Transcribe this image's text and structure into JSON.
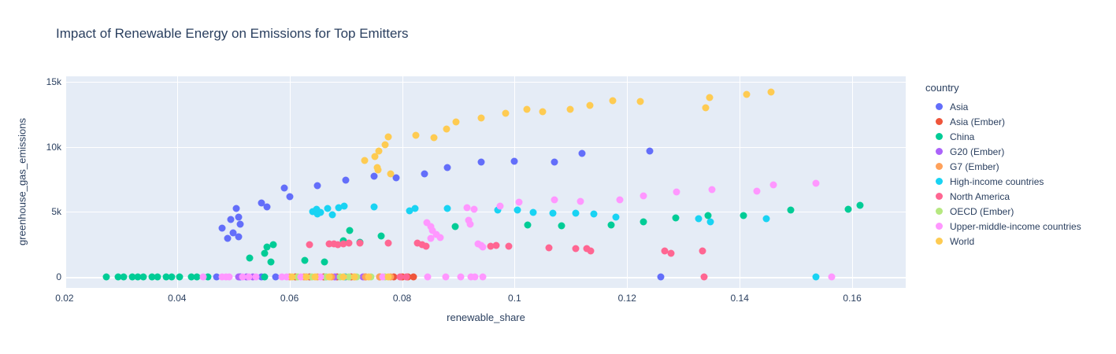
{
  "chart_data": {
    "type": "scatter",
    "title": "Impact of Renewable Energy on Emissions for Top Emitters",
    "xlabel": "renewable_share",
    "ylabel": "greenhouse_gas_emissions",
    "legend_title": "country",
    "legend_position": "right",
    "grid": true,
    "plot_bg": "#e5ecf6",
    "text_color": "#2a3f5f",
    "xlim": [
      0.0203,
      0.1695
    ],
    "ylim": [
      -850,
      15420
    ],
    "x_ticks": {
      "values": [
        0.02,
        0.04,
        0.06,
        0.08,
        0.1,
        0.12,
        0.14,
        0.16
      ],
      "labels": [
        "0.02",
        "0.04",
        "0.06",
        "0.08",
        "0.1",
        "0.12",
        "0.14",
        "0.16"
      ]
    },
    "y_ticks": {
      "values": [
        0,
        5000,
        10000,
        15000
      ],
      "labels": [
        "0",
        "5k",
        "10k",
        "15k"
      ]
    },
    "series": [
      {
        "name": "Asia",
        "color": "#636efa",
        "points": [
          [
            0.048,
            3750
          ],
          [
            0.049,
            2950
          ],
          [
            0.0495,
            4400
          ],
          [
            0.05,
            3400
          ],
          [
            0.0505,
            5250
          ],
          [
            0.051,
            4600
          ],
          [
            0.051,
            3100
          ],
          [
            0.0512,
            4050
          ],
          [
            0.055,
            5700
          ],
          [
            0.056,
            5400
          ],
          [
            0.059,
            6850
          ],
          [
            0.06,
            6150
          ],
          [
            0.065,
            7000
          ],
          [
            0.07,
            7450
          ],
          [
            0.075,
            7750
          ],
          [
            0.079,
            7600
          ],
          [
            0.084,
            7900
          ],
          [
            0.088,
            8400
          ],
          [
            0.094,
            8850
          ],
          [
            0.1,
            8900
          ],
          [
            0.107,
            8850
          ],
          [
            0.112,
            9500
          ],
          [
            0.124,
            9700
          ],
          [
            0.047,
            0
          ],
          [
            0.0512,
            0
          ],
          [
            0.055,
            0
          ],
          [
            0.0575,
            0
          ],
          [
            0.126,
            0
          ]
        ]
      },
      {
        "name": "Asia (Ember)",
        "color": "#ef553b",
        "points": [
          [
            0.061,
            0
          ],
          [
            0.0635,
            0
          ],
          [
            0.066,
            0
          ],
          [
            0.0685,
            0
          ],
          [
            0.071,
            0
          ],
          [
            0.0735,
            0
          ],
          [
            0.076,
            0
          ],
          [
            0.0785,
            0
          ],
          [
            0.08,
            0
          ],
          [
            0.081,
            0
          ],
          [
            0.082,
            0
          ]
        ]
      },
      {
        "name": "China",
        "color": "#00cc96",
        "points": [
          [
            0.0529,
            1450
          ],
          [
            0.0555,
            1800
          ],
          [
            0.056,
            2300
          ],
          [
            0.0567,
            1150
          ],
          [
            0.0571,
            2500
          ],
          [
            0.0627,
            1300
          ],
          [
            0.0662,
            1150
          ],
          [
            0.0696,
            2800
          ],
          [
            0.0707,
            3550
          ],
          [
            0.0725,
            2650
          ],
          [
            0.0763,
            3150
          ],
          [
            0.0894,
            3850
          ],
          [
            0.1023,
            4000
          ],
          [
            0.1083,
            3950
          ],
          [
            0.1172,
            4000
          ],
          [
            0.1229,
            4250
          ],
          [
            0.1286,
            4550
          ],
          [
            0.1344,
            4700
          ],
          [
            0.1407,
            4700
          ],
          [
            0.149,
            5150
          ],
          [
            0.1593,
            5200
          ],
          [
            0.1614,
            5500
          ],
          [
            0.0275,
            0
          ],
          [
            0.0295,
            0
          ],
          [
            0.0305,
            0
          ],
          [
            0.032,
            0
          ],
          [
            0.033,
            0
          ],
          [
            0.034,
            0
          ],
          [
            0.0355,
            0
          ],
          [
            0.0365,
            0
          ],
          [
            0.038,
            0
          ],
          [
            0.039,
            0
          ],
          [
            0.0405,
            0
          ],
          [
            0.0425,
            0
          ],
          [
            0.0435,
            0
          ],
          [
            0.0455,
            0
          ],
          [
            0.0555,
            0
          ]
        ]
      },
      {
        "name": "G20 (Ember)",
        "color": "#ab63fa",
        "points": [
          [
            0.051,
            0
          ],
          [
            0.0523,
            0
          ],
          [
            0.0535,
            0
          ],
          [
            0.063,
            0
          ],
          [
            0.068,
            0
          ],
          [
            0.073,
            0
          ]
        ]
      },
      {
        "name": "G7 (Ember)",
        "color": "#ffa15a",
        "points": [
          [
            0.06,
            0
          ],
          [
            0.0625,
            0
          ],
          [
            0.065,
            0
          ],
          [
            0.0675,
            0
          ],
          [
            0.07,
            0
          ],
          [
            0.0715,
            0
          ],
          [
            0.0735,
            0
          ],
          [
            0.076,
            0
          ],
          [
            0.078,
            0
          ]
        ]
      },
      {
        "name": "High-income countries",
        "color": "#19d3f3",
        "points": [
          [
            0.0641,
            5000
          ],
          [
            0.0648,
            5200
          ],
          [
            0.0649,
            4850
          ],
          [
            0.0655,
            4950
          ],
          [
            0.0667,
            5250
          ],
          [
            0.0676,
            4800
          ],
          [
            0.0687,
            5300
          ],
          [
            0.0697,
            5450
          ],
          [
            0.075,
            5400
          ],
          [
            0.0813,
            5100
          ],
          [
            0.0823,
            5250
          ],
          [
            0.0881,
            5250
          ],
          [
            0.097,
            5150
          ],
          [
            0.1005,
            5150
          ],
          [
            0.1033,
            4950
          ],
          [
            0.1068,
            4900
          ],
          [
            0.1109,
            4900
          ],
          [
            0.114,
            4850
          ],
          [
            0.118,
            4600
          ],
          [
            0.1327,
            4500
          ],
          [
            0.1348,
            4250
          ],
          [
            0.1447,
            4500
          ],
          [
            0.0665,
            0
          ],
          [
            0.0698,
            0
          ],
          [
            0.1536,
            0
          ]
        ]
      },
      {
        "name": "North America",
        "color": "#ff6692",
        "points": [
          [
            0.0635,
            2500
          ],
          [
            0.067,
            2550
          ],
          [
            0.0679,
            2550
          ],
          [
            0.0686,
            2500
          ],
          [
            0.0695,
            2550
          ],
          [
            0.0705,
            2600
          ],
          [
            0.0725,
            2600
          ],
          [
            0.0775,
            2600
          ],
          [
            0.0827,
            2600
          ],
          [
            0.0836,
            2500
          ],
          [
            0.0843,
            2350
          ],
          [
            0.0957,
            2350
          ],
          [
            0.0967,
            2400
          ],
          [
            0.099,
            2350
          ],
          [
            0.1061,
            2250
          ],
          [
            0.1109,
            2200
          ],
          [
            0.1128,
            2200
          ],
          [
            0.1135,
            2000
          ],
          [
            0.1267,
            2000
          ],
          [
            0.1278,
            1800
          ],
          [
            0.1334,
            2000
          ],
          [
            0.0796,
            0
          ],
          [
            0.0807,
            0
          ],
          [
            0.1336,
            0
          ]
        ]
      },
      {
        "name": "OECD (Ember)",
        "color": "#b6e880",
        "points": [
          [
            0.0615,
            0
          ],
          [
            0.064,
            0
          ],
          [
            0.0665,
            0
          ],
          [
            0.069,
            0
          ],
          [
            0.0705,
            0
          ],
          [
            0.072,
            0
          ],
          [
            0.0745,
            0
          ],
          [
            0.077,
            0
          ]
        ]
      },
      {
        "name": "Upper-middle-income countries",
        "color": "#ff97ff",
        "points": [
          [
            0.0844,
            4200
          ],
          [
            0.0851,
            3850
          ],
          [
            0.0854,
            3550
          ],
          [
            0.0861,
            3250
          ],
          [
            0.0868,
            3050
          ],
          [
            0.0851,
            2950
          ],
          [
            0.0915,
            5300
          ],
          [
            0.0928,
            5200
          ],
          [
            0.0918,
            4350
          ],
          [
            0.0921,
            4050
          ],
          [
            0.0935,
            2550
          ],
          [
            0.0941,
            2400
          ],
          [
            0.0944,
            2300
          ],
          [
            0.0974,
            5450
          ],
          [
            0.1008,
            5750
          ],
          [
            0.107,
            5900
          ],
          [
            0.1117,
            5800
          ],
          [
            0.1187,
            5900
          ],
          [
            0.1229,
            6250
          ],
          [
            0.1287,
            6550
          ],
          [
            0.135,
            6700
          ],
          [
            0.143,
            6600
          ],
          [
            0.146,
            7100
          ],
          [
            0.1536,
            7200
          ],
          [
            0.0446,
            0
          ],
          [
            0.048,
            0
          ],
          [
            0.0487,
            0
          ],
          [
            0.0493,
            0
          ],
          [
            0.0516,
            0
          ],
          [
            0.0527,
            0
          ],
          [
            0.054,
            0
          ],
          [
            0.0587,
            0
          ],
          [
            0.0595,
            0
          ],
          [
            0.062,
            0
          ],
          [
            0.0655,
            0
          ],
          [
            0.0765,
            0
          ],
          [
            0.0845,
            0
          ],
          [
            0.0877,
            0
          ],
          [
            0.0904,
            0
          ],
          [
            0.0922,
            0
          ],
          [
            0.0929,
            0
          ],
          [
            0.0943,
            0
          ],
          [
            0.1564,
            0
          ]
        ]
      },
      {
        "name": "World",
        "color": "#fecb52",
        "points": [
          [
            0.0733,
            8950
          ],
          [
            0.0751,
            9250
          ],
          [
            0.0756,
            8400
          ],
          [
            0.0757,
            8200
          ],
          [
            0.0758,
            9700
          ],
          [
            0.077,
            10150
          ],
          [
            0.0775,
            10750
          ],
          [
            0.078,
            7900
          ],
          [
            0.0824,
            10900
          ],
          [
            0.0857,
            10700
          ],
          [
            0.0879,
            11350
          ],
          [
            0.0896,
            11900
          ],
          [
            0.0941,
            12200
          ],
          [
            0.0984,
            12600
          ],
          [
            0.1022,
            12900
          ],
          [
            0.105,
            12700
          ],
          [
            0.1098,
            12900
          ],
          [
            0.1133,
            13200
          ],
          [
            0.1174,
            13550
          ],
          [
            0.1223,
            13500
          ],
          [
            0.134,
            13000
          ],
          [
            0.1347,
            13800
          ],
          [
            0.1412,
            14050
          ],
          [
            0.1455,
            14200
          ],
          [
            0.0605,
            0
          ],
          [
            0.063,
            0
          ],
          [
            0.0645,
            0
          ],
          [
            0.067,
            0
          ],
          [
            0.0695,
            0
          ],
          [
            0.0715,
            0
          ],
          [
            0.074,
            0
          ],
          [
            0.0775,
            0
          ]
        ]
      }
    ]
  }
}
